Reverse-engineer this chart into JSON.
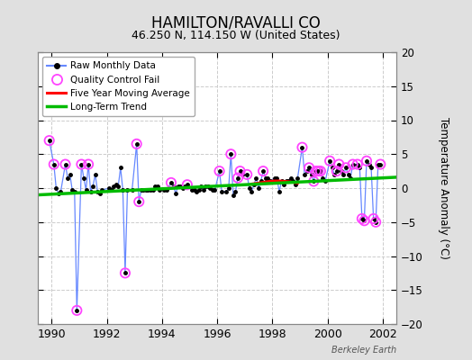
{
  "title": "HAMILTON/RAVALLI CO",
  "subtitle": "46.250 N, 114.150 W (United States)",
  "ylabel": "Temperature Anomaly (°C)",
  "watermark": "Berkeley Earth",
  "xlim": [
    1989.5,
    2002.5
  ],
  "ylim": [
    -20,
    20
  ],
  "yticks": [
    -20,
    -15,
    -10,
    -5,
    0,
    5,
    10,
    15,
    20
  ],
  "xticks": [
    1990,
    1992,
    1994,
    1996,
    1998,
    2000,
    2002
  ],
  "bg_color": "#e0e0e0",
  "plot_bg_color": "#ffffff",
  "grid_color": "#cccccc",
  "raw_data": [
    [
      1989.917,
      7.0
    ],
    [
      1990.083,
      3.5
    ],
    [
      1990.167,
      0.0
    ],
    [
      1990.25,
      -0.8
    ],
    [
      1990.333,
      -0.5
    ],
    [
      1990.5,
      3.5
    ],
    [
      1990.583,
      1.5
    ],
    [
      1990.667,
      2.0
    ],
    [
      1990.75,
      -0.3
    ],
    [
      1990.833,
      -0.5
    ],
    [
      1990.917,
      -18.0
    ],
    [
      1991.083,
      3.5
    ],
    [
      1991.167,
      1.5
    ],
    [
      1991.25,
      -0.3
    ],
    [
      1991.333,
      3.5
    ],
    [
      1991.417,
      -0.5
    ],
    [
      1991.5,
      0.3
    ],
    [
      1991.583,
      2.0
    ],
    [
      1991.667,
      -0.5
    ],
    [
      1991.75,
      -0.8
    ],
    [
      1991.833,
      -0.3
    ],
    [
      1992.083,
      0.0
    ],
    [
      1992.167,
      -0.3
    ],
    [
      1992.25,
      0.3
    ],
    [
      1992.333,
      0.5
    ],
    [
      1992.417,
      0.3
    ],
    [
      1992.5,
      3.0
    ],
    [
      1992.583,
      -0.3
    ],
    [
      1992.667,
      -12.5
    ],
    [
      1992.75,
      -0.3
    ],
    [
      1992.917,
      -0.3
    ],
    [
      1993.083,
      6.5
    ],
    [
      1993.167,
      -2.0
    ],
    [
      1993.25,
      -0.3
    ],
    [
      1993.333,
      -0.3
    ],
    [
      1993.417,
      -0.3
    ],
    [
      1993.5,
      -0.3
    ],
    [
      1993.583,
      -0.3
    ],
    [
      1993.667,
      -0.3
    ],
    [
      1993.75,
      0.3
    ],
    [
      1993.833,
      0.3
    ],
    [
      1993.917,
      -0.3
    ],
    [
      1994.083,
      -0.3
    ],
    [
      1994.167,
      -0.3
    ],
    [
      1994.333,
      0.8
    ],
    [
      1994.417,
      0.3
    ],
    [
      1994.5,
      -0.8
    ],
    [
      1994.583,
      0.3
    ],
    [
      1994.667,
      0.3
    ],
    [
      1994.75,
      0.0
    ],
    [
      1994.833,
      0.3
    ],
    [
      1994.917,
      0.5
    ],
    [
      1995.083,
      -0.3
    ],
    [
      1995.167,
      -0.3
    ],
    [
      1995.25,
      -0.5
    ],
    [
      1995.333,
      -0.3
    ],
    [
      1995.417,
      0.3
    ],
    [
      1995.5,
      -0.3
    ],
    [
      1995.583,
      0.3
    ],
    [
      1995.667,
      0.3
    ],
    [
      1995.75,
      0.0
    ],
    [
      1995.833,
      -0.3
    ],
    [
      1995.917,
      -0.3
    ],
    [
      1996.083,
      2.5
    ],
    [
      1996.167,
      -0.5
    ],
    [
      1996.333,
      -0.5
    ],
    [
      1996.417,
      0.0
    ],
    [
      1996.5,
      5.0
    ],
    [
      1996.583,
      -1.0
    ],
    [
      1996.667,
      -0.5
    ],
    [
      1996.75,
      1.5
    ],
    [
      1996.833,
      2.5
    ],
    [
      1996.917,
      2.0
    ],
    [
      1997.083,
      2.0
    ],
    [
      1997.167,
      0.0
    ],
    [
      1997.25,
      -0.5
    ],
    [
      1997.333,
      0.5
    ],
    [
      1997.417,
      1.5
    ],
    [
      1997.5,
      0.0
    ],
    [
      1997.583,
      1.0
    ],
    [
      1997.667,
      2.5
    ],
    [
      1997.75,
      1.5
    ],
    [
      1997.833,
      1.5
    ],
    [
      1997.917,
      1.0
    ],
    [
      1998.083,
      1.5
    ],
    [
      1998.167,
      1.5
    ],
    [
      1998.25,
      -0.5
    ],
    [
      1998.333,
      1.0
    ],
    [
      1998.417,
      0.5
    ],
    [
      1998.5,
      1.0
    ],
    [
      1998.583,
      1.0
    ],
    [
      1998.667,
      1.5
    ],
    [
      1998.75,
      1.0
    ],
    [
      1998.833,
      0.5
    ],
    [
      1998.917,
      1.5
    ],
    [
      1999.083,
      6.0
    ],
    [
      1999.167,
      2.0
    ],
    [
      1999.25,
      2.5
    ],
    [
      1999.333,
      3.0
    ],
    [
      1999.417,
      2.0
    ],
    [
      1999.5,
      1.0
    ],
    [
      1999.583,
      2.5
    ],
    [
      1999.667,
      2.5
    ],
    [
      1999.75,
      2.5
    ],
    [
      1999.833,
      1.5
    ],
    [
      1999.917,
      1.0
    ],
    [
      2000.083,
      4.0
    ],
    [
      2000.167,
      3.0
    ],
    [
      2000.25,
      2.0
    ],
    [
      2000.333,
      2.5
    ],
    [
      2000.417,
      3.5
    ],
    [
      2000.5,
      2.5
    ],
    [
      2000.583,
      2.0
    ],
    [
      2000.667,
      3.0
    ],
    [
      2000.75,
      2.0
    ],
    [
      2000.833,
      1.5
    ],
    [
      2000.917,
      3.5
    ],
    [
      2001.083,
      3.5
    ],
    [
      2001.167,
      3.0
    ],
    [
      2001.25,
      -4.5
    ],
    [
      2001.333,
      -4.8
    ],
    [
      2001.417,
      4.0
    ],
    [
      2001.5,
      3.5
    ],
    [
      2001.583,
      3.0
    ],
    [
      2001.667,
      -4.5
    ],
    [
      2001.75,
      -5.0
    ],
    [
      2001.833,
      3.5
    ],
    [
      2001.917,
      3.5
    ]
  ],
  "qc_fail_points": [
    [
      1989.917,
      7.0
    ],
    [
      1990.083,
      3.5
    ],
    [
      1990.5,
      3.5
    ],
    [
      1990.917,
      -18.0
    ],
    [
      1991.083,
      3.5
    ],
    [
      1991.333,
      3.5
    ],
    [
      1992.667,
      -12.5
    ],
    [
      1993.083,
      6.5
    ],
    [
      1993.167,
      -2.0
    ],
    [
      1994.333,
      0.8
    ],
    [
      1994.917,
      0.5
    ],
    [
      1996.083,
      2.5
    ],
    [
      1996.5,
      5.0
    ],
    [
      1996.75,
      1.5
    ],
    [
      1996.833,
      2.5
    ],
    [
      1997.083,
      2.0
    ],
    [
      1997.667,
      2.5
    ],
    [
      1999.083,
      6.0
    ],
    [
      1999.333,
      3.0
    ],
    [
      1999.5,
      1.0
    ],
    [
      1999.583,
      2.5
    ],
    [
      1999.667,
      2.5
    ],
    [
      1999.75,
      2.5
    ],
    [
      2000.083,
      4.0
    ],
    [
      2000.333,
      2.5
    ],
    [
      2000.417,
      3.5
    ],
    [
      2000.667,
      3.0
    ],
    [
      2000.917,
      3.5
    ],
    [
      2001.083,
      3.5
    ],
    [
      2001.25,
      -4.5
    ],
    [
      2001.333,
      -4.8
    ],
    [
      2001.417,
      4.0
    ],
    [
      2001.667,
      -4.5
    ],
    [
      2001.75,
      -5.0
    ],
    [
      2001.917,
      3.5
    ]
  ],
  "moving_avg": [
    [
      1997.25,
      0.6
    ],
    [
      1997.417,
      0.7
    ],
    [
      1997.583,
      0.8
    ],
    [
      1997.75,
      0.9
    ],
    [
      1997.917,
      1.0
    ],
    [
      1998.083,
      1.05
    ],
    [
      1998.25,
      1.05
    ],
    [
      1998.417,
      1.0
    ],
    [
      1998.583,
      0.95
    ],
    [
      1998.75,
      0.85
    ],
    [
      1998.917,
      0.75
    ]
  ],
  "trend_x": [
    1989.5,
    2002.5
  ],
  "trend_y": [
    -1.0,
    1.6
  ],
  "raw_line_color": "#6688ff",
  "raw_dot_color": "#000000",
  "qc_circle_color": "#ff44ff",
  "moving_avg_color": "#ff0000",
  "trend_color": "#00bb00",
  "legend_loc": "upper left"
}
